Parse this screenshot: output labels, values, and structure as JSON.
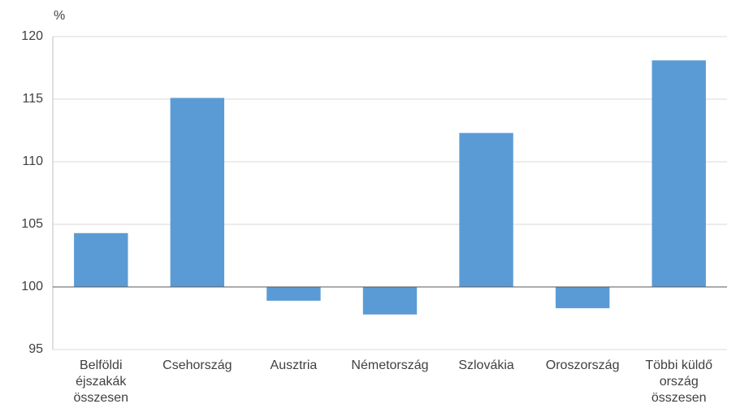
{
  "chart_data": {
    "type": "bar",
    "y_unit": "%",
    "categories": [
      "Belföldi éjszakák összesen",
      "Csehország",
      "Ausztria",
      "Németország",
      "Szlovákia",
      "Oroszország",
      "Többi küldő ország összesen"
    ],
    "values": [
      104.3,
      115.1,
      98.9,
      97.8,
      112.3,
      98.3,
      118.1
    ],
    "color": "#5b9bd5",
    "base": 100,
    "ylim": [
      95,
      120
    ],
    "yticks": [
      95,
      100,
      105,
      110,
      115,
      120
    ],
    "grid": true
  }
}
